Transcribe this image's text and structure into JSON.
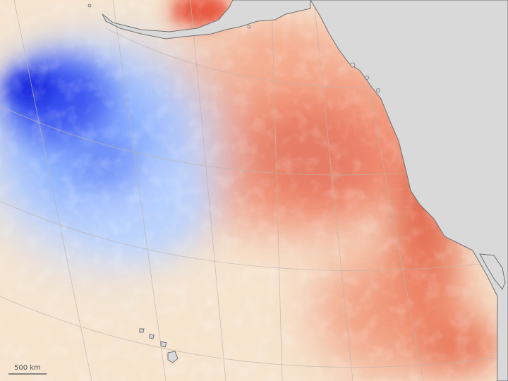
{
  "map": {
    "scale_bar": {
      "label": "500 km"
    },
    "colors": {
      "land": "#d9d9d9",
      "coast_outline": "#707070",
      "graticule": "#bdb6ad",
      "neutral_ocean": "#f6e4cf",
      "warm_anomaly_strong": "#c8201a",
      "warm_anomaly_mid": "#f08a6a",
      "cool_anomaly_strong": "#1a2ee0",
      "cool_anomaly_mid": "#a9c8ff"
    }
  }
}
